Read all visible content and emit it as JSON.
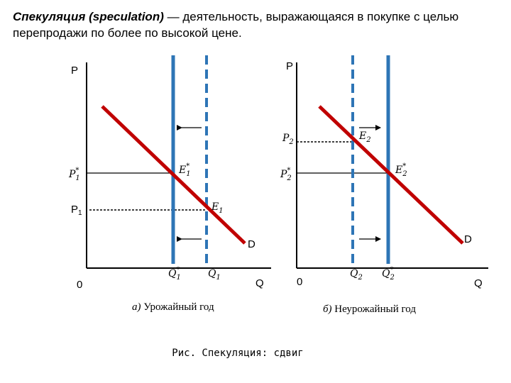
{
  "header": {
    "term": "Спекуляция (speculation)",
    "rest": " — деятельность, выражающаяся в покупке с целью перепродажи по более по высокой цене."
  },
  "left": {
    "p_axis": "P",
    "q_axis": "Q",
    "origin": "0",
    "demand": "D",
    "p1star": "P",
    "p1star_sup": "*",
    "p1star_sub": "1",
    "p1": "P",
    "p1_sub": "1",
    "e1star": "E",
    "e1star_sup": "*",
    "e1star_sub": "1",
    "e1": "E",
    "e1_sub": "1",
    "q1star": "Q",
    "q1star_sup": "*",
    "q1star_sub": "1",
    "q1": "Q",
    "q1_sub": "1",
    "caption_letter": "а)",
    "caption_text": " Урожайный год"
  },
  "right": {
    "p_axis": "P",
    "q_axis": "Q",
    "origin": "0",
    "demand": "D",
    "p2": "P",
    "p2_sub": "2",
    "p2star": "P",
    "p2star_sup": "*",
    "p2star_sub": "2",
    "e2": "E",
    "e2_sub": "2",
    "e2star": "E",
    "e2star_sup": "*",
    "e2star_sub": "2",
    "q2": "Q",
    "q2_sub": "2",
    "q2star": "Q",
    "q2star_sup": "*",
    "q2star_sub": "2",
    "caption_letter": "б)",
    "caption_text": " Неурожайный год"
  },
  "figure_caption": "Рис. Спекуляция: сдвиг",
  "colors": {
    "demand": "#c00000",
    "supply": "#2e75b6",
    "axis": "#000000"
  }
}
